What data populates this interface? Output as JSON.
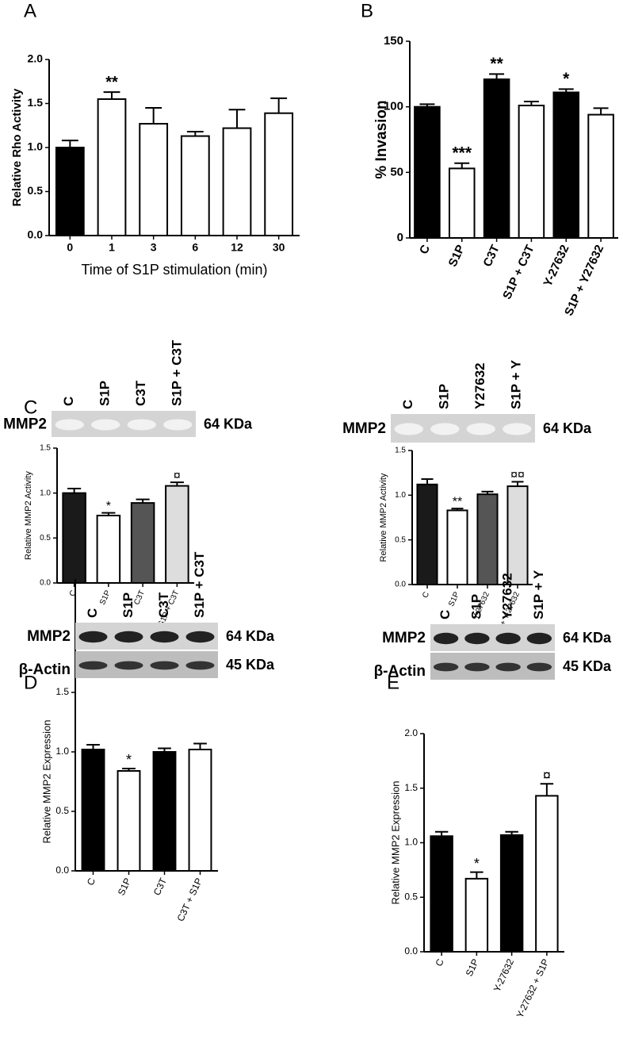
{
  "chart_data": [
    {
      "type": "bar",
      "panel": "A",
      "ylabel": "Relative Rho Activity",
      "xlabel": "Time of S1P stimulation (min)",
      "categories": [
        "0",
        "1",
        "3",
        "6",
        "12",
        "30"
      ],
      "values": [
        1.0,
        1.55,
        1.27,
        1.13,
        1.22,
        1.39
      ],
      "errors": [
        0.08,
        0.08,
        0.18,
        0.05,
        0.21,
        0.17
      ],
      "colors": [
        "#000000",
        "#ffffff",
        "#ffffff",
        "#ffffff",
        "#ffffff",
        "#ffffff"
      ],
      "annotations": [
        null,
        "**",
        null,
        null,
        null,
        null
      ],
      "ylim": [
        0,
        2
      ],
      "yticks": [
        {
          "value": 0,
          "label": "0.0"
        },
        {
          "value": 0.5,
          "label": "0.5"
        },
        {
          "value": 1,
          "label": "1.0"
        },
        {
          "value": 1.5,
          "label": "1.5"
        },
        {
          "value": 2,
          "label": "2.0"
        }
      ]
    },
    {
      "type": "bar",
      "panel": "B",
      "ylabel": "% Invasion",
      "categories": [
        "C",
        "S1P",
        "C3T",
        "S1P + C3T",
        "Y-27632",
        "S1P + Y27632"
      ],
      "values": [
        100,
        53,
        121,
        101,
        111,
        94
      ],
      "errors": [
        2,
        4,
        4,
        3,
        2.5,
        5
      ],
      "colors": [
        "#000000",
        "#ffffff",
        "#000000",
        "#ffffff",
        "#000000",
        "#ffffff"
      ],
      "annotations": [
        null,
        "***",
        "**",
        null,
        "*",
        null
      ],
      "ylim": [
        0,
        150
      ],
      "yticks": [
        0,
        50,
        100,
        150
      ]
    },
    {
      "type": "bar",
      "panel": "C",
      "ylabel": "Relative MMP2 Activity",
      "blot": {
        "lanes": [
          "C",
          "S1P",
          "C3T",
          "S1P + C3T"
        ],
        "rows": [
          {
            "label": "MMP2",
            "size": "64 KDa"
          }
        ]
      },
      "categories": [
        "C",
        "S1P",
        "C3T",
        "S1P + C3T"
      ],
      "values": [
        1.0,
        0.75,
        0.89,
        1.08
      ],
      "errors": [
        0.05,
        0.03,
        0.04,
        0.04
      ],
      "colors": [
        "#1a1a1a",
        "#ffffff",
        "#555555",
        "#dddddd"
      ],
      "annotations": [
        null,
        "*",
        null,
        "¤"
      ],
      "ylim": [
        0,
        1.5
      ],
      "yticks": [
        {
          "value": 0,
          "label": "0.0"
        },
        {
          "value": 0.5,
          "label": "0.5"
        },
        {
          "value": 1,
          "label": "1.0"
        },
        {
          "value": 1.5,
          "label": "1.5"
        }
      ]
    },
    {
      "type": "bar",
      "ylabel": "Relative MMP2 Activity",
      "blot": {
        "lanes": [
          "C",
          "S1P",
          "Y27632",
          "S1P + Y"
        ],
        "rows": [
          {
            "label": "MMP2",
            "size": "64 KDa"
          }
        ]
      },
      "categories": [
        "C",
        "S1P",
        "Y-27632",
        "S1P + Y-27632"
      ],
      "values": [
        1.12,
        0.83,
        1.01,
        1.1
      ],
      "errors": [
        0.06,
        0.02,
        0.03,
        0.05
      ],
      "colors": [
        "#1a1a1a",
        "#ffffff",
        "#555555",
        "#dddddd"
      ],
      "annotations": [
        null,
        "**",
        null,
        "¤¤"
      ],
      "ylim": [
        0,
        1.5
      ],
      "yticks": [
        {
          "value": 0,
          "label": "0.0"
        },
        {
          "value": 0.5,
          "label": "0.5"
        },
        {
          "value": 1,
          "label": "1.0"
        },
        {
          "value": 1.5,
          "label": "1.5"
        }
      ]
    },
    {
      "type": "bar",
      "panel": "D",
      "ylabel": "Relative MMP2 Expression",
      "blot": {
        "lanes": [
          "C",
          "S1P",
          "C3T",
          "S1P + C3T"
        ],
        "rows": [
          {
            "label": "MMP2",
            "size": "64 KDa"
          },
          {
            "label": "β-Actin",
            "size": "45 KDa"
          }
        ]
      },
      "categories": [
        "C",
        "S1P",
        "C3T",
        "C3T + S1P"
      ],
      "values": [
        1.02,
        0.84,
        1.0,
        1.02
      ],
      "errors": [
        0.04,
        0.02,
        0.03,
        0.05
      ],
      "colors": [
        "#000000",
        "#ffffff",
        "#000000",
        "#ffffff"
      ],
      "annotations": [
        null,
        "*",
        null,
        null
      ],
      "ylim": [
        0,
        1.5
      ],
      "yticks": [
        {
          "value": 0,
          "label": "0.0"
        },
        {
          "value": 0.5,
          "label": "0.5"
        },
        {
          "value": 1,
          "label": "1.0"
        },
        {
          "value": 1.5,
          "label": "1.5"
        }
      ]
    },
    {
      "type": "bar",
      "panel": "E",
      "ylabel": "Relative MMP2 Expression",
      "blot": {
        "lanes": [
          "C",
          "S1P",
          "Y27632",
          "S1P + Y"
        ],
        "rows": [
          {
            "label": "MMP2",
            "size": "64 KDa"
          },
          {
            "label": "β-Actin",
            "size": "45 KDa"
          }
        ]
      },
      "categories": [
        "C",
        "S1P",
        "Y-27632",
        "Y-27632 + S1P"
      ],
      "values": [
        1.06,
        0.67,
        1.07,
        1.43
      ],
      "errors": [
        0.04,
        0.06,
        0.03,
        0.11
      ],
      "colors": [
        "#000000",
        "#ffffff",
        "#000000",
        "#ffffff"
      ],
      "annotations": [
        null,
        "*",
        null,
        "¤"
      ],
      "ylim": [
        0,
        2
      ],
      "yticks": [
        {
          "value": 0,
          "label": "0.0"
        },
        {
          "value": 0.5,
          "label": "0.5"
        },
        {
          "value": 1,
          "label": "1.0"
        },
        {
          "value": 1.5,
          "label": "1.5"
        },
        {
          "value": 2,
          "label": "2.0"
        }
      ]
    }
  ]
}
